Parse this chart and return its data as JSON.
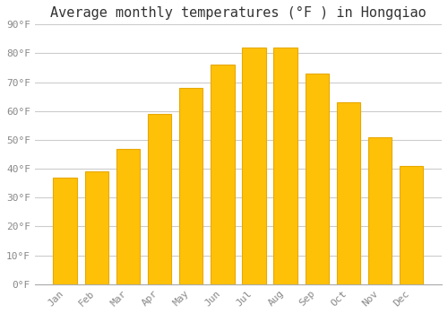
{
  "title": "Average monthly temperatures (°F ) in Hongqiao",
  "months": [
    "Jan",
    "Feb",
    "Mar",
    "Apr",
    "May",
    "Jun",
    "Jul",
    "Aug",
    "Sep",
    "Oct",
    "Nov",
    "Dec"
  ],
  "values": [
    37,
    39,
    47,
    59,
    68,
    76,
    82,
    82,
    73,
    63,
    51,
    41
  ],
  "bar_color": "#FFC107",
  "bar_edge_color": "#E8A800",
  "background_color": "#FFFFFF",
  "grid_color": "#CCCCCC",
  "ylim": [
    0,
    90
  ],
  "yticks": [
    0,
    10,
    20,
    30,
    40,
    50,
    60,
    70,
    80,
    90
  ],
  "title_fontsize": 11,
  "tick_fontsize": 8,
  "tick_font_color": "#888888",
  "bar_width": 0.75
}
